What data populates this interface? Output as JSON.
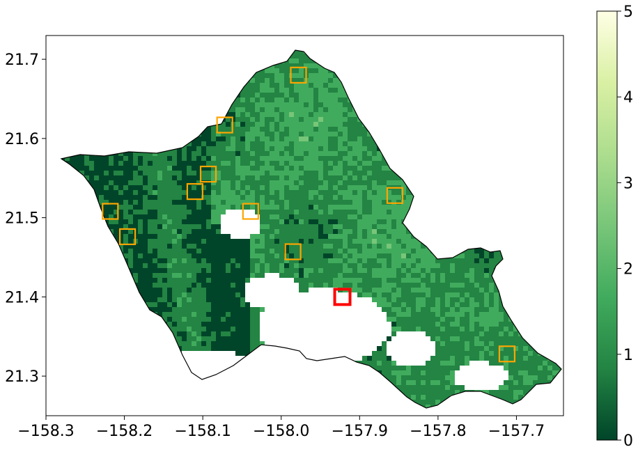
{
  "chart_data": {
    "type": "heatmap",
    "title": "",
    "xlabel": "",
    "ylabel": "",
    "xlim": [
      -158.3,
      -157.64
    ],
    "ylim": [
      21.25,
      21.73
    ],
    "x_ticks": [
      "−158.3",
      "−158.2",
      "−158.1",
      "−158.0",
      "−157.9",
      "−157.8",
      "−157.7"
    ],
    "x_tick_values": [
      -158.3,
      -158.2,
      -158.1,
      -158.0,
      -157.9,
      -157.8,
      -157.7
    ],
    "y_ticks": [
      "21.3",
      "21.4",
      "21.5",
      "21.6",
      "21.7"
    ],
    "y_tick_values": [
      21.3,
      21.4,
      21.5,
      21.6,
      21.7
    ],
    "colorbar": {
      "colormap": "YlGn_r",
      "range": [
        0,
        5
      ],
      "ticks": [
        "0",
        "1",
        "2",
        "3",
        "4",
        "5"
      ],
      "tick_values": [
        0,
        1,
        2,
        3,
        4,
        5
      ],
      "colors": [
        "#004529",
        "#238443",
        "#41ab5d",
        "#78c679",
        "#addd8e",
        "#d9f0a3",
        "#ffffe5"
      ]
    },
    "highlight_boxes": [
      {
        "lon": -157.978,
        "lat": 21.68,
        "color": "#ffa500"
      },
      {
        "lon": -158.072,
        "lat": 21.617,
        "color": "#ffa500"
      },
      {
        "lon": -158.093,
        "lat": 21.555,
        "color": "#ffa500"
      },
      {
        "lon": -158.11,
        "lat": 21.533,
        "color": "#ffa500"
      },
      {
        "lon": -158.218,
        "lat": 21.508,
        "color": "#ffa500"
      },
      {
        "lon": -158.039,
        "lat": 21.508,
        "color": "#ffa500"
      },
      {
        "lon": -158.196,
        "lat": 21.476,
        "color": "#ffa500"
      },
      {
        "lon": -157.985,
        "lat": 21.457,
        "color": "#ffa500"
      },
      {
        "lon": -157.855,
        "lat": 21.528,
        "color": "#ffa500"
      },
      {
        "lon": -157.712,
        "lat": 21.328,
        "color": "#ffa500"
      },
      {
        "lon": -157.922,
        "lat": 21.4,
        "color": "#ff0000"
      }
    ]
  }
}
